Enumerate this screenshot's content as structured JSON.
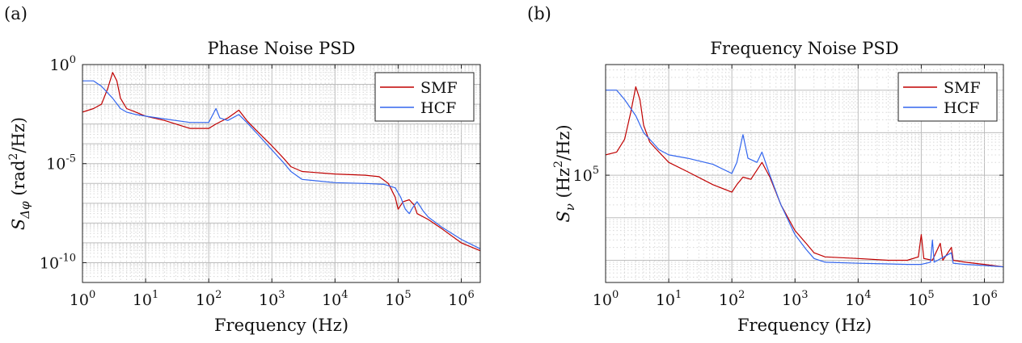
{
  "chart_data": [
    {
      "type": "line",
      "panel_label": "(a)",
      "title": "Phase Noise PSD",
      "xlabel": "Frequency (Hz)",
      "ylabel_main": "S",
      "ylabel_sub": "Δφ",
      "ylabel_unit_pre": " (rad",
      "ylabel_unit_sup": "2",
      "ylabel_unit_post": "/Hz)",
      "x_scale": "log",
      "y_scale": "log",
      "xlim": [
        1,
        2000000
      ],
      "ylim": [
        1e-11,
        1
      ],
      "grid": true,
      "legend_position": "top-right",
      "xticks": [
        {
          "value": 1,
          "base": "10",
          "exp": "0"
        },
        {
          "value": 10,
          "base": "10",
          "exp": "1"
        },
        {
          "value": 100,
          "base": "10",
          "exp": "2"
        },
        {
          "value": 1000,
          "base": "10",
          "exp": "3"
        },
        {
          "value": 10000,
          "base": "10",
          "exp": "4"
        },
        {
          "value": 100000,
          "base": "10",
          "exp": "5"
        },
        {
          "value": 1000000,
          "base": "10",
          "exp": "6"
        }
      ],
      "yticks": [
        {
          "value": 1,
          "base": "10",
          "exp": "0"
        },
        {
          "value": 1e-05,
          "base": "10",
          "exp": "-5"
        },
        {
          "value": 1e-10,
          "base": "10",
          "exp": "-10"
        }
      ],
      "series": [
        {
          "name": "SMF",
          "color": "#c00000",
          "points": [
            [
              1,
              0.004
            ],
            [
              1.5,
              0.006
            ],
            [
              2,
              0.01
            ],
            [
              2.5,
              0.06
            ],
            [
              3,
              0.4
            ],
            [
              3.5,
              0.15
            ],
            [
              4,
              0.02
            ],
            [
              5,
              0.006
            ],
            [
              7,
              0.004
            ],
            [
              10,
              0.0025
            ],
            [
              20,
              0.0015
            ],
            [
              50,
              0.0006
            ],
            [
              100,
              0.0006
            ],
            [
              130,
              0.001
            ],
            [
              200,
              0.002
            ],
            [
              300,
              0.005
            ],
            [
              400,
              0.0015
            ],
            [
              600,
              0.0004
            ],
            [
              1000,
              8e-05
            ],
            [
              1500,
              2e-05
            ],
            [
              2000,
              7e-06
            ],
            [
              3000,
              4e-06
            ],
            [
              10000,
              3e-06
            ],
            [
              30000,
              2.6e-06
            ],
            [
              50000,
              2.2e-06
            ],
            [
              70000,
              1e-06
            ],
            [
              90000,
              2e-07
            ],
            [
              100000,
              5e-08
            ],
            [
              120000,
              1.2e-07
            ],
            [
              150000,
              1.5e-07
            ],
            [
              180000,
              8e-08
            ],
            [
              200000,
              3e-08
            ],
            [
              300000,
              1.5e-08
            ],
            [
              500000,
              5e-09
            ],
            [
              1000000,
              1e-09
            ],
            [
              2000000,
              4e-10
            ]
          ]
        },
        {
          "name": "HCF",
          "color": "#3366ee",
          "points": [
            [
              1,
              0.15
            ],
            [
              1.5,
              0.15
            ],
            [
              2,
              0.08
            ],
            [
              3,
              0.02
            ],
            [
              4,
              0.006
            ],
            [
              5,
              0.004
            ],
            [
              7,
              0.003
            ],
            [
              10,
              0.0025
            ],
            [
              20,
              0.0018
            ],
            [
              50,
              0.0012
            ],
            [
              100,
              0.0012
            ],
            [
              130,
              0.006
            ],
            [
              150,
              0.002
            ],
            [
              200,
              0.0015
            ],
            [
              300,
              0.003
            ],
            [
              400,
              0.0012
            ],
            [
              600,
              0.0003
            ],
            [
              1000,
              5e-05
            ],
            [
              1500,
              1.2e-05
            ],
            [
              2000,
              4e-06
            ],
            [
              3000,
              1.6e-06
            ],
            [
              10000,
              1.1e-06
            ],
            [
              30000,
              1e-06
            ],
            [
              60000,
              9e-07
            ],
            [
              90000,
              6e-07
            ],
            [
              110000,
              2e-07
            ],
            [
              130000,
              5e-08
            ],
            [
              150000,
              3e-08
            ],
            [
              170000,
              6e-08
            ],
            [
              200000,
              1.2e-07
            ],
            [
              250000,
              4e-08
            ],
            [
              300000,
              2e-08
            ],
            [
              500000,
              6e-09
            ],
            [
              1000000,
              1.5e-09
            ],
            [
              2000000,
              5e-10
            ]
          ]
        }
      ]
    },
    {
      "type": "line",
      "panel_label": "(b)",
      "title": "Frequency Noise PSD",
      "xlabel": "Frequency (Hz)",
      "ylabel_main": "S",
      "ylabel_sub": "ν",
      "ylabel_unit_pre": " (Hz",
      "ylabel_unit_sup": "2",
      "ylabel_unit_post": "/Hz)",
      "x_scale": "log",
      "y_scale": "log",
      "xlim": [
        1,
        2000000
      ],
      "ylim": [
        300,
        40000000
      ],
      "grid": true,
      "legend_position": "top-right",
      "xticks": [
        {
          "value": 1,
          "base": "10",
          "exp": "0"
        },
        {
          "value": 10,
          "base": "10",
          "exp": "1"
        },
        {
          "value": 100,
          "base": "10",
          "exp": "2"
        },
        {
          "value": 1000,
          "base": "10",
          "exp": "3"
        },
        {
          "value": 10000,
          "base": "10",
          "exp": "4"
        },
        {
          "value": 100000,
          "base": "10",
          "exp": "5"
        },
        {
          "value": 1000000,
          "base": "10",
          "exp": "6"
        }
      ],
      "yticks": [
        {
          "value": 100000,
          "base": "10",
          "exp": "5"
        }
      ],
      "series": [
        {
          "name": "SMF",
          "color": "#c00000",
          "points": [
            [
              1,
              300000
            ],
            [
              1.5,
              350000
            ],
            [
              2,
              700000
            ],
            [
              2.5,
              3000000
            ],
            [
              3,
              12000000
            ],
            [
              3.5,
              6000000
            ],
            [
              4,
              1500000
            ],
            [
              5,
              600000
            ],
            [
              7,
              350000
            ],
            [
              10,
              200000
            ],
            [
              20,
              120000
            ],
            [
              50,
              60000
            ],
            [
              100,
              40000
            ],
            [
              120,
              60000
            ],
            [
              150,
              90000
            ],
            [
              200,
              80000
            ],
            [
              300,
              200000
            ],
            [
              400,
              90000
            ],
            [
              600,
              20000
            ],
            [
              1000,
              5000
            ],
            [
              1500,
              2500
            ],
            [
              2000,
              1500
            ],
            [
              3000,
              1200
            ],
            [
              10000,
              1100
            ],
            [
              30000,
              1000
            ],
            [
              60000,
              1000
            ],
            [
              90000,
              1200
            ],
            [
              100000,
              4000
            ],
            [
              110000,
              1100
            ],
            [
              150000,
              1000
            ],
            [
              200000,
              2500
            ],
            [
              220000,
              1000
            ],
            [
              300000,
              2000
            ],
            [
              320000,
              1000
            ],
            [
              500000,
              900
            ],
            [
              1000000,
              800
            ],
            [
              2000000,
              700
            ]
          ]
        },
        {
          "name": "HCF",
          "color": "#3366ee",
          "points": [
            [
              1,
              10000000
            ],
            [
              1.5,
              10000000
            ],
            [
              2,
              6000000
            ],
            [
              3,
              2500000
            ],
            [
              4,
              1000000
            ],
            [
              5,
              700000
            ],
            [
              7,
              400000
            ],
            [
              10,
              300000
            ],
            [
              20,
              250000
            ],
            [
              50,
              180000
            ],
            [
              100,
              110000
            ],
            [
              120,
              200000
            ],
            [
              150,
              900000
            ],
            [
              180,
              250000
            ],
            [
              250,
              200000
            ],
            [
              300,
              350000
            ],
            [
              400,
              100000
            ],
            [
              600,
              20000
            ],
            [
              1000,
              4000
            ],
            [
              1500,
              1800
            ],
            [
              2000,
              1100
            ],
            [
              3000,
              900
            ],
            [
              10000,
              850
            ],
            [
              30000,
              820
            ],
            [
              60000,
              800
            ],
            [
              100000,
              800
            ],
            [
              140000,
              900
            ],
            [
              150000,
              3000
            ],
            [
              160000,
              900
            ],
            [
              300000,
              1500
            ],
            [
              320000,
              850
            ],
            [
              500000,
              800
            ],
            [
              1000000,
              750
            ],
            [
              2000000,
              700
            ]
          ]
        }
      ]
    }
  ]
}
